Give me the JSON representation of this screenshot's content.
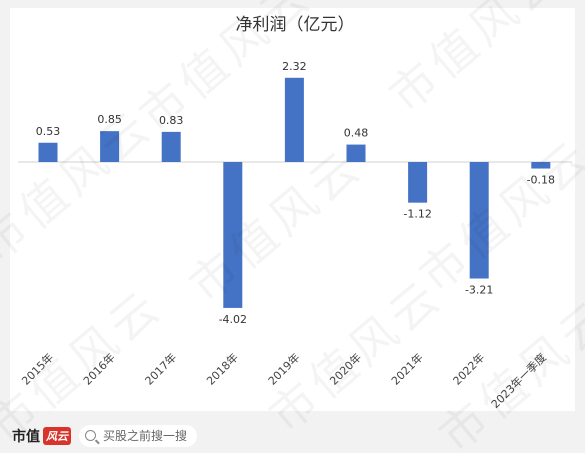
{
  "chart_data": {
    "type": "bar",
    "title": "净利润（亿元）",
    "categories": [
      "2015年",
      "2016年",
      "2017年",
      "2018年",
      "2019年",
      "2020年",
      "2021年",
      "2022年",
      "2023年一季度"
    ],
    "values": [
      0.53,
      0.85,
      0.83,
      -4.02,
      2.32,
      0.48,
      -1.12,
      -3.21,
      -0.18
    ],
    "value_labels": [
      "0.53",
      "0.85",
      "0.83",
      "-4.02",
      "2.32",
      "0.48",
      "-1.12",
      "-3.21",
      "-0.18"
    ],
    "ylim": [
      -4.3,
      4.3
    ],
    "grid": false,
    "bar_color": "#4472c4"
  },
  "watermark": {
    "text": "市值风云"
  },
  "footer": {
    "brand_text": "市值",
    "brand_badge": "风云",
    "search_text": "买股之前搜一搜"
  }
}
